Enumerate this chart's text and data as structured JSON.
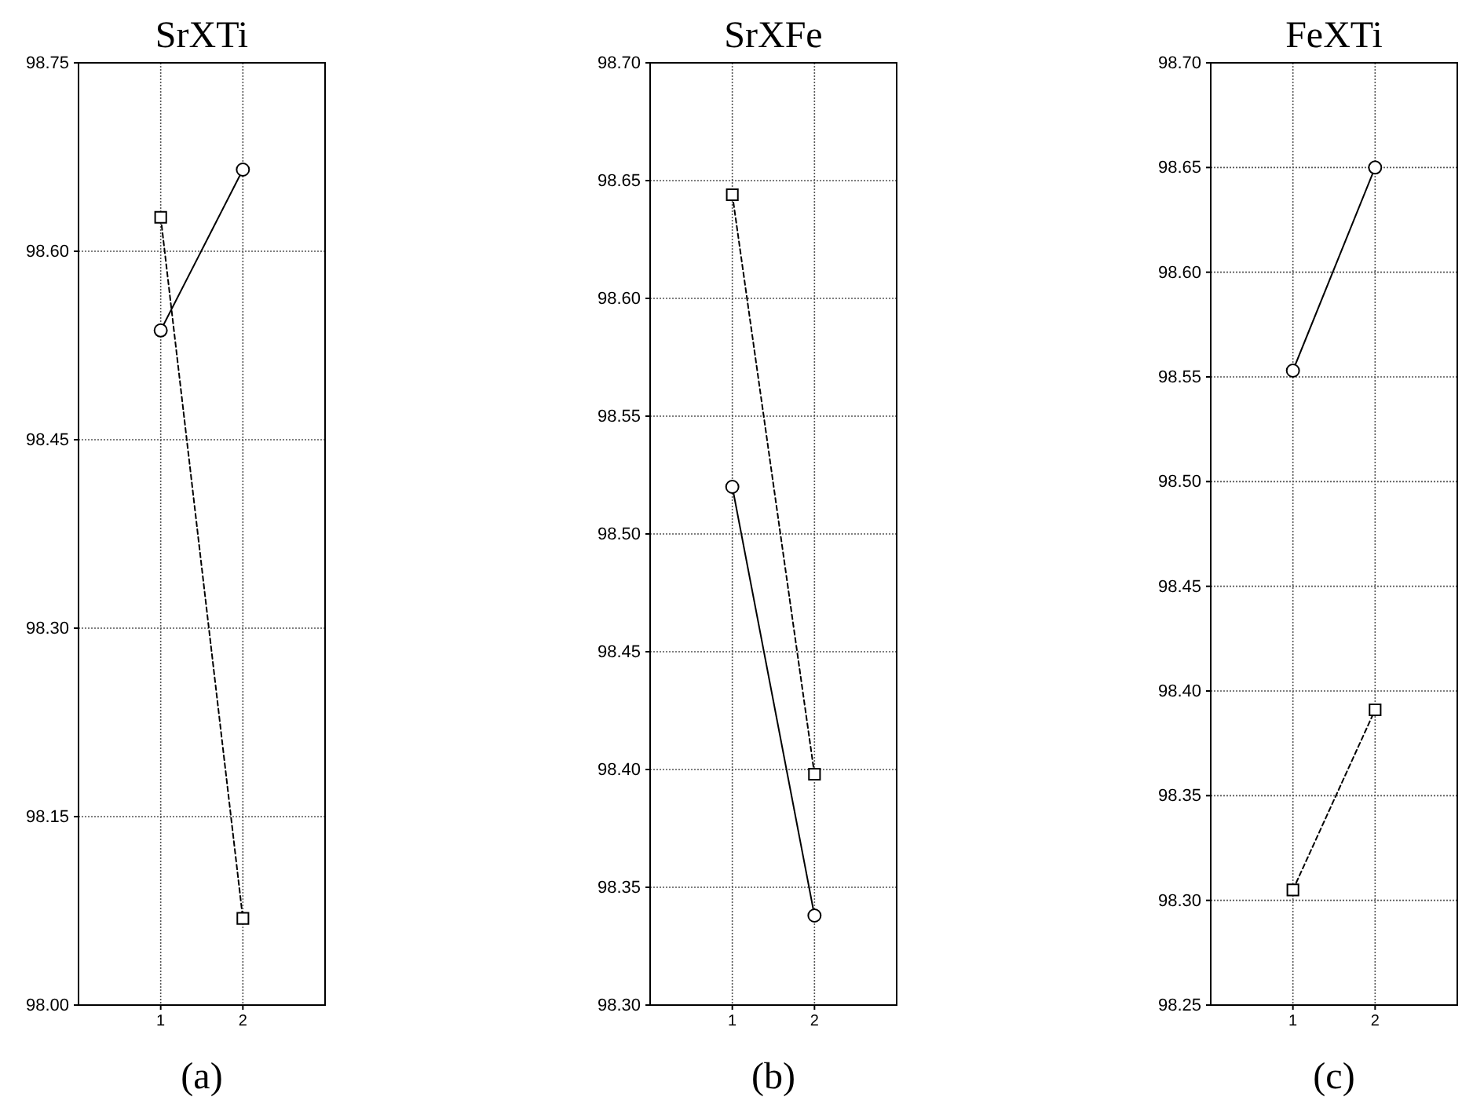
{
  "chart_data": [
    {
      "type": "line",
      "title": "SrXTi",
      "categories": [
        "1",
        "2"
      ],
      "ylim": [
        98.0,
        98.75
      ],
      "yticks": [
        {
          "value": 98.0,
          "label": "98.00"
        },
        98.15,
        {
          "value": 98.3,
          "label": "98.30"
        },
        98.45,
        {
          "value": 98.6,
          "label": "98.60"
        },
        98.75
      ],
      "grid": true,
      "annotations": [
        "(a)"
      ],
      "series": [
        {
          "color": "#000000",
          "values": [
            98.537,
            98.665
          ],
          "marker": "circle",
          "line_style": "solid"
        },
        {
          "color": "#000000",
          "values": [
            98.627,
            98.069
          ],
          "marker": "square",
          "line_style": "dashed"
        }
      ]
    },
    {
      "type": "line",
      "title": "SrXFe",
      "categories": [
        "1",
        "2"
      ],
      "ylim": [
        98.3,
        98.7
      ],
      "yticks": [
        {
          "value": 98.3,
          "label": "98.30"
        },
        98.35,
        {
          "value": 98.4,
          "label": "98.40"
        },
        98.45,
        {
          "value": 98.5,
          "label": "98.50"
        },
        98.55,
        {
          "value": 98.6,
          "label": "98.60"
        },
        98.65,
        {
          "value": 98.7,
          "label": "98.70"
        }
      ],
      "grid": true,
      "annotations": [
        "(b)"
      ],
      "series": [
        {
          "color": "#000000",
          "values": [
            98.52,
            98.338
          ],
          "marker": "circle",
          "line_style": "solid"
        },
        {
          "color": "#000000",
          "values": [
            98.644,
            98.398
          ],
          "marker": "square",
          "line_style": "dashed"
        }
      ]
    },
    {
      "type": "line",
      "title": "FeXTi",
      "categories": [
        "1",
        "2"
      ],
      "ylim": [
        98.25,
        98.7
      ],
      "yticks": [
        98.25,
        {
          "value": 98.3,
          "label": "98.30"
        },
        98.35,
        {
          "value": 98.4,
          "label": "98.40"
        },
        98.45,
        {
          "value": 98.5,
          "label": "98.50"
        },
        98.55,
        {
          "value": 98.6,
          "label": "98.60"
        },
        98.65,
        {
          "value": 98.7,
          "label": "98.70"
        }
      ],
      "grid": true,
      "annotations": [
        "(c)"
      ],
      "series": [
        {
          "color": "#000000",
          "values": [
            98.553,
            98.65
          ],
          "marker": "circle",
          "line_style": "solid"
        },
        {
          "color": "#000000",
          "values": [
            98.305,
            98.391
          ],
          "marker": "square",
          "line_style": "dashed"
        }
      ]
    }
  ]
}
